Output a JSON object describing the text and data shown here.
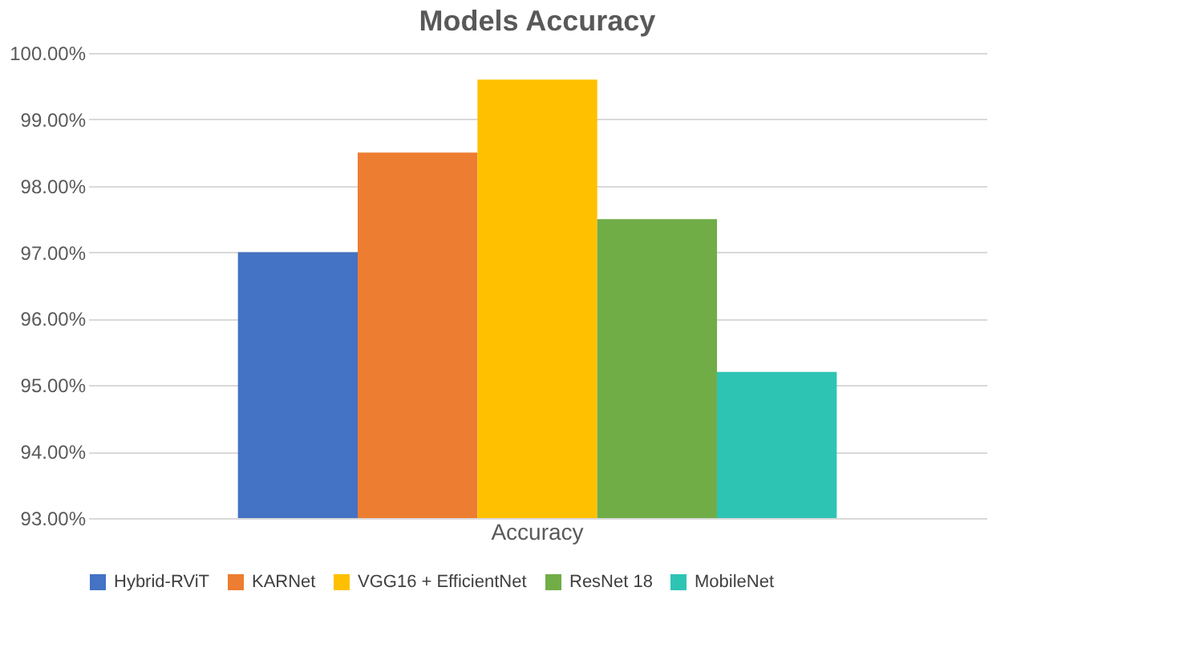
{
  "chart_data": {
    "type": "bar",
    "title": "Models Accuracy",
    "categories": [
      "Accuracy"
    ],
    "series": [
      {
        "name": "Hybrid-RViT",
        "color": "#4472c4",
        "values": [
          97.0
        ]
      },
      {
        "name": "KARNet",
        "color": "#ed7d31",
        "values": [
          98.5
        ]
      },
      {
        "name": "VGG16 + EfficientNet",
        "color": "#ffc000",
        "values": [
          99.6
        ]
      },
      {
        "name": "ResNet 18",
        "color": "#70ad47",
        "values": [
          97.5
        ]
      },
      {
        "name": "MobileNet",
        "color": "#2ec4b4",
        "values": [
          95.2
        ]
      }
    ],
    "ylim": [
      93,
      100
    ],
    "yticks": [
      {
        "value": 93,
        "label": "93.00%"
      },
      {
        "value": 94,
        "label": "94.00%"
      },
      {
        "value": 95,
        "label": "95.00%"
      },
      {
        "value": 96,
        "label": "96.00%"
      },
      {
        "value": 97,
        "label": "97.00%"
      },
      {
        "value": 98,
        "label": "98.00%"
      },
      {
        "value": 99,
        "label": "99.00%"
      },
      {
        "value": 100,
        "label": "100.00%"
      }
    ],
    "grid": "y",
    "legend": "bottom"
  }
}
